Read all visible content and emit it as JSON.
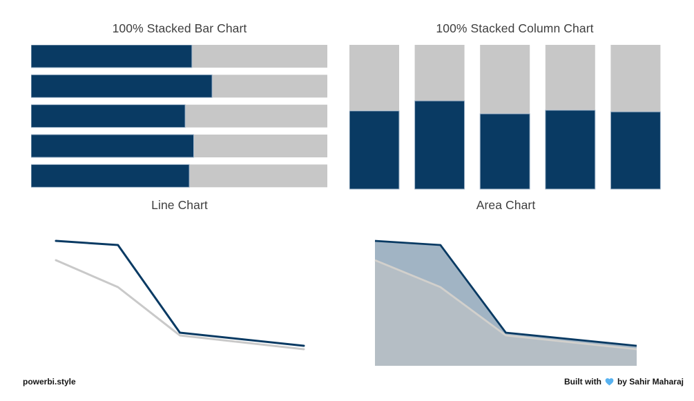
{
  "page": {
    "background": "#ffffff",
    "title_color": "#3e3e3e"
  },
  "colors": {
    "primary_navy": "#093a63",
    "secondary_gray": "#c7c7c7",
    "heart_blue": "#58b2f0"
  },
  "footer": {
    "left_text": "powerbi.style",
    "right_prefix": "Built with",
    "right_suffix": "by Sahir Maharaj",
    "heart_icon": "light-blue-heart",
    "heart_color": "#58b2f0"
  },
  "chart_data": [
    {
      "type": "bar",
      "orientation": "horizontal",
      "stacked_100": true,
      "title": "100% Stacked Bar Chart",
      "bars": 5,
      "axes": "hidden",
      "legend": "none",
      "unit": "percent_share",
      "series": [
        {
          "name": "primary",
          "color": "#093a63",
          "values": [
            54.3,
            61.1,
            52.0,
            54.9,
            53.4
          ]
        },
        {
          "name": "secondary",
          "color": "#c7c7c7",
          "values": [
            45.7,
            38.9,
            48.0,
            45.1,
            46.6
          ]
        }
      ]
    },
    {
      "type": "bar",
      "orientation": "vertical",
      "stacked_100": true,
      "title": "100% Stacked Column Chart",
      "bars": 5,
      "axes": "hidden",
      "legend": "none",
      "unit": "percent_share",
      "series": [
        {
          "name": "primary",
          "color": "#093a63",
          "values": [
            54.2,
            61.2,
            52.2,
            54.7,
            53.6
          ]
        },
        {
          "name": "secondary",
          "color": "#c7c7c7",
          "values": [
            45.8,
            38.8,
            47.8,
            45.3,
            46.4
          ]
        }
      ]
    },
    {
      "type": "line",
      "title": "Line Chart",
      "axes": "hidden",
      "legend": "none",
      "x": [
        0,
        1,
        2,
        4
      ],
      "ylim": [
        0,
        206
      ],
      "series": [
        {
          "name": "primary",
          "color": "#093a63",
          "values": [
            181,
            175,
            48,
            29
          ]
        },
        {
          "name": "secondary",
          "color": "#c9c9c9",
          "values": [
            153,
            114,
            44,
            24
          ]
        }
      ]
    },
    {
      "type": "area",
      "title": "Area Chart",
      "axes": "hidden",
      "legend": "none",
      "x": [
        0,
        1,
        2,
        4
      ],
      "ylim": [
        0,
        206
      ],
      "baseline": 0,
      "series": [
        {
          "name": "primary",
          "color": "#093a63",
          "fill_opacity": 0.38,
          "values": [
            181,
            175,
            48,
            29
          ]
        },
        {
          "name": "secondary",
          "color": "#c6c6c6",
          "stroke_color": "#d2d0cc",
          "fill_opacity": 0.55,
          "values": [
            153,
            114,
            44,
            24
          ]
        }
      ]
    }
  ]
}
